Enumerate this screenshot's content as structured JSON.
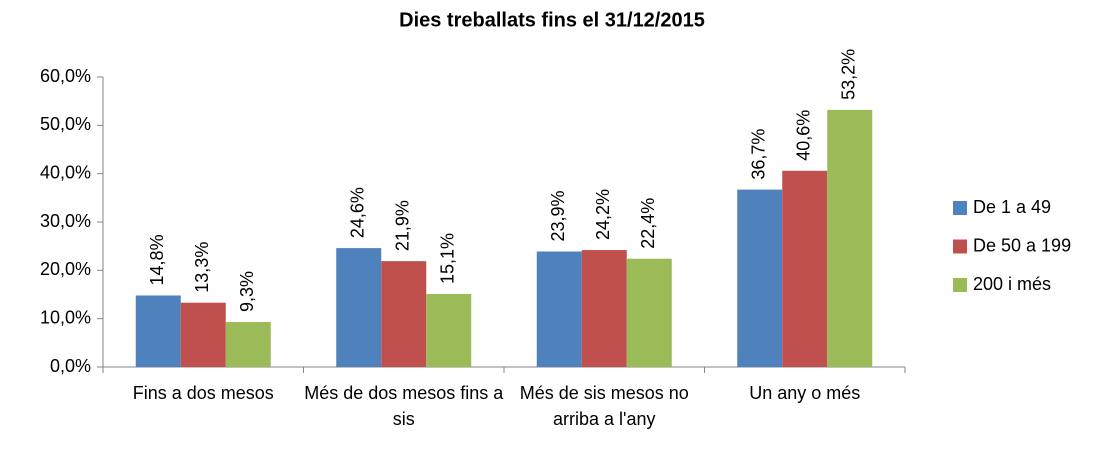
{
  "chart_data": {
    "type": "bar",
    "title": "Dies treballats fins el 31/12/2015",
    "categories": [
      "Fins a dos mesos",
      "Més de dos mesos fins a sis",
      "Més de sis mesos no arriba a l'any",
      "Un any o més"
    ],
    "series": [
      {
        "name": "De 1 a 49",
        "color": "#4f81bd",
        "values": [
          14.8,
          24.6,
          23.9,
          36.7
        ],
        "value_labels": [
          "14,8%",
          "24,6%",
          "23,9%",
          "36,7%"
        ]
      },
      {
        "name": "De 50 a 199",
        "color": "#c0504d",
        "values": [
          13.3,
          21.9,
          24.2,
          40.6
        ],
        "value_labels": [
          "13,3%",
          "21,9%",
          "24,2%",
          "40,6%"
        ]
      },
      {
        "name": "200 i més",
        "color": "#9bbb59",
        "values": [
          9.3,
          15.1,
          22.4,
          53.2
        ],
        "value_labels": [
          "9,3%",
          "15,1%",
          "22,4%",
          "53,2%"
        ]
      }
    ],
    "ylim": [
      0,
      60
    ],
    "yticks": [
      {
        "value": 0,
        "label": "0,0%"
      },
      {
        "value": 10,
        "label": "10,0%"
      },
      {
        "value": 20,
        "label": "20,0%"
      },
      {
        "value": 30,
        "label": "30,0%"
      },
      {
        "value": 40,
        "label": "40,0%"
      },
      {
        "value": 50,
        "label": "50,0%"
      },
      {
        "value": 60,
        "label": "60,0%"
      }
    ],
    "legend": "right"
  }
}
